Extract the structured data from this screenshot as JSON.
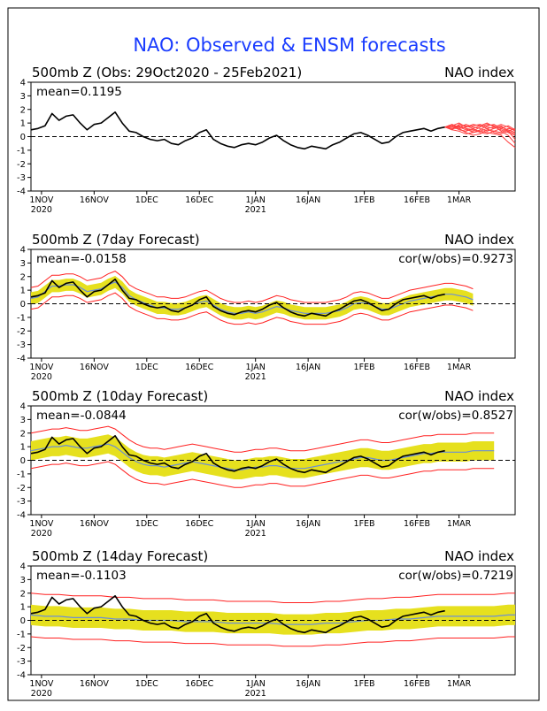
{
  "page_title": "NAO: Observed & ENSM forecasts",
  "colors": {
    "title": "#1a3cff",
    "observed": "#000000",
    "ensemble_members": "#ff4040",
    "spread_band": "#e6e01e",
    "ens_mean": "#6b8fd6",
    "spread_envelope": "#ff2020",
    "zero_line": "#000000",
    "frame": "#000000"
  },
  "chart_data": [
    {
      "type": "line",
      "title": "500mb Z (Obs: 29Oct2020 - 25Feb2021)",
      "right_label": "NAO index",
      "stat_label": "mean=0.1195",
      "corr_label": "",
      "x_ticks": [
        "1NOV",
        "16NOV",
        "1DEC",
        "16DEC",
        "1JAN",
        "16JAN",
        "1FEB",
        "16FEB",
        "1MAR"
      ],
      "x_tick_days": [
        3,
        18,
        33,
        48,
        64,
        79,
        95,
        110,
        122
      ],
      "year_labels": [
        {
          "text": "2020",
          "day": 3
        },
        {
          "text": "2021",
          "day": 64
        }
      ],
      "ylim": [
        -4,
        4
      ],
      "y_ticks": [
        4,
        3,
        2,
        1,
        0,
        -1,
        -2,
        -3,
        -4
      ],
      "xlim": [
        0,
        138
      ],
      "observed_x": [
        0,
        2,
        4,
        6,
        8,
        10,
        12,
        14,
        16,
        18,
        20,
        22,
        24,
        26,
        28,
        30,
        32,
        34,
        36,
        38,
        40,
        42,
        44,
        46,
        48,
        50,
        52,
        54,
        56,
        58,
        60,
        62,
        64,
        66,
        68,
        70,
        72,
        74,
        76,
        78,
        80,
        82,
        84,
        86,
        88,
        90,
        92,
        94,
        96,
        98,
        100,
        102,
        104,
        106,
        108,
        110,
        112,
        114,
        116,
        118
      ],
      "observed_y": [
        0.5,
        0.6,
        0.8,
        1.7,
        1.2,
        1.5,
        1.6,
        1.0,
        0.5,
        0.9,
        1.0,
        1.4,
        1.8,
        1.0,
        0.4,
        0.3,
        0.0,
        -0.2,
        -0.3,
        -0.2,
        -0.5,
        -0.6,
        -0.3,
        -0.1,
        0.3,
        0.5,
        -0.2,
        -0.5,
        -0.7,
        -0.8,
        -0.6,
        -0.5,
        -0.6,
        -0.4,
        -0.1,
        0.1,
        -0.3,
        -0.6,
        -0.8,
        -0.9,
        -0.7,
        -0.8,
        -0.9,
        -0.6,
        -0.4,
        -0.1,
        0.2,
        0.3,
        0.1,
        -0.2,
        -0.5,
        -0.4,
        0.0,
        0.3,
        0.4,
        0.5,
        0.6,
        0.4,
        0.6,
        0.7
      ],
      "members_x": [
        118,
        120,
        122,
        124,
        126,
        128,
        130,
        132,
        134,
        136,
        138
      ],
      "members_y": [
        [
          0.7,
          0.6,
          0.8,
          0.6,
          0.5,
          0.4,
          0.3,
          0.2,
          0.1,
          -0.4,
          -0.8
        ],
        [
          0.7,
          0.8,
          1.0,
          0.7,
          0.8,
          0.9,
          0.7,
          0.6,
          0.7,
          0.5,
          0.3
        ],
        [
          0.7,
          0.5,
          0.4,
          0.2,
          0.3,
          0.5,
          0.8,
          0.9,
          0.6,
          0.4,
          0.2
        ],
        [
          0.7,
          0.9,
          0.6,
          0.3,
          0.1,
          0.2,
          0.5,
          0.4,
          0.3,
          0.6,
          0.5
        ],
        [
          0.7,
          0.6,
          0.7,
          0.9,
          0.7,
          0.6,
          0.4,
          0.6,
          0.8,
          0.4,
          -0.2
        ],
        [
          0.7,
          0.8,
          0.5,
          0.4,
          0.6,
          0.8,
          1.0,
          0.7,
          0.5,
          0.3,
          0.1
        ],
        [
          0.7,
          0.5,
          0.9,
          0.8,
          0.6,
          0.3,
          0.2,
          0.4,
          0.6,
          0.8,
          0.5
        ],
        [
          0.7,
          0.9,
          0.7,
          0.5,
          0.4,
          0.7,
          0.9,
          0.8,
          0.4,
          0.1,
          -0.5
        ],
        [
          0.7,
          0.6,
          0.6,
          0.7,
          0.9,
          0.8,
          0.6,
          0.3,
          0.2,
          0.4,
          0.6
        ],
        [
          0.7,
          0.7,
          0.8,
          0.6,
          0.3,
          0.4,
          0.6,
          0.7,
          0.9,
          0.7,
          0.4
        ]
      ]
    },
    {
      "type": "area",
      "title": "500mb Z (7day Forecast)",
      "right_label": "NAO index",
      "stat_label": "mean=-0.0158",
      "corr_label": "cor(w/obs)=0.9273",
      "x_ticks": [
        "1NOV",
        "16NOV",
        "1DEC",
        "16DEC",
        "1JAN",
        "16JAN",
        "1FEB",
        "16FEB",
        "1MAR"
      ],
      "x_tick_days": [
        3,
        18,
        33,
        48,
        64,
        79,
        95,
        110,
        122
      ],
      "year_labels": [
        {
          "text": "2020",
          "day": 3
        },
        {
          "text": "2021",
          "day": 64
        }
      ],
      "ylim": [
        -4,
        4
      ],
      "y_ticks": [
        4,
        3,
        2,
        1,
        0,
        -1,
        -2,
        -3,
        -4
      ],
      "xlim": [
        0,
        138
      ],
      "spread": {
        "band": 0.45,
        "envelope": 0.8
      },
      "mean_x": [
        0,
        2,
        4,
        6,
        8,
        10,
        12,
        14,
        16,
        18,
        20,
        22,
        24,
        26,
        28,
        30,
        32,
        34,
        36,
        38,
        40,
        42,
        44,
        46,
        48,
        50,
        52,
        54,
        56,
        58,
        60,
        62,
        64,
        66,
        68,
        70,
        72,
        74,
        76,
        78,
        80,
        82,
        84,
        86,
        88,
        90,
        92,
        94,
        96,
        98,
        100,
        102,
        104,
        106,
        108,
        110,
        112,
        114,
        116,
        118,
        120,
        122,
        124,
        126
      ],
      "mean_y": [
        0.4,
        0.5,
        0.9,
        1.3,
        1.3,
        1.4,
        1.4,
        1.2,
        0.9,
        1.0,
        1.1,
        1.4,
        1.6,
        1.2,
        0.6,
        0.3,
        0.1,
        -0.1,
        -0.3,
        -0.3,
        -0.4,
        -0.4,
        -0.3,
        -0.1,
        0.1,
        0.2,
        -0.1,
        -0.4,
        -0.6,
        -0.7,
        -0.7,
        -0.6,
        -0.7,
        -0.6,
        -0.4,
        -0.2,
        -0.3,
        -0.5,
        -0.6,
        -0.7,
        -0.7,
        -0.7,
        -0.7,
        -0.6,
        -0.5,
        -0.3,
        0.0,
        0.1,
        0.0,
        -0.2,
        -0.4,
        -0.4,
        -0.2,
        0.0,
        0.2,
        0.3,
        0.4,
        0.5,
        0.6,
        0.7,
        0.7,
        0.6,
        0.5,
        0.3
      ],
      "observed_x": [
        0,
        2,
        4,
        6,
        8,
        10,
        12,
        14,
        16,
        18,
        20,
        22,
        24,
        26,
        28,
        30,
        32,
        34,
        36,
        38,
        40,
        42,
        44,
        46,
        48,
        50,
        52,
        54,
        56,
        58,
        60,
        62,
        64,
        66,
        68,
        70,
        72,
        74,
        76,
        78,
        80,
        82,
        84,
        86,
        88,
        90,
        92,
        94,
        96,
        98,
        100,
        102,
        104,
        106,
        108,
        110,
        112,
        114,
        116,
        118
      ],
      "observed_y": [
        0.5,
        0.6,
        0.8,
        1.7,
        1.2,
        1.5,
        1.6,
        1.0,
        0.5,
        0.9,
        1.0,
        1.4,
        1.8,
        1.0,
        0.4,
        0.3,
        0.0,
        -0.2,
        -0.3,
        -0.2,
        -0.5,
        -0.6,
        -0.3,
        -0.1,
        0.3,
        0.5,
        -0.2,
        -0.5,
        -0.7,
        -0.8,
        -0.6,
        -0.5,
        -0.6,
        -0.4,
        -0.1,
        0.1,
        -0.3,
        -0.6,
        -0.8,
        -0.9,
        -0.7,
        -0.8,
        -0.9,
        -0.6,
        -0.4,
        -0.1,
        0.2,
        0.3,
        0.1,
        -0.2,
        -0.5,
        -0.4,
        0.0,
        0.3,
        0.4,
        0.5,
        0.6,
        0.4,
        0.6,
        0.7
      ]
    },
    {
      "type": "area",
      "title": "500mb Z (10day Forecast)",
      "right_label": "NAO index",
      "stat_label": "mean=-0.0844",
      "corr_label": "cor(w/obs)=0.8527",
      "x_ticks": [
        "1NOV",
        "16NOV",
        "1DEC",
        "16DEC",
        "1JAN",
        "16JAN",
        "1FEB",
        "16FEB",
        "1MAR"
      ],
      "x_tick_days": [
        3,
        18,
        33,
        48,
        64,
        79,
        95,
        110,
        122
      ],
      "year_labels": [
        {
          "text": "2020",
          "day": 3
        },
        {
          "text": "2021",
          "day": 64
        }
      ],
      "ylim": [
        -4,
        4
      ],
      "y_ticks": [
        4,
        3,
        2,
        1,
        0,
        -1,
        -2,
        -3,
        -4
      ],
      "xlim": [
        0,
        138
      ],
      "spread": {
        "band": 0.7,
        "envelope": 1.3
      },
      "mean_x": [
        0,
        2,
        4,
        6,
        8,
        10,
        12,
        14,
        16,
        18,
        20,
        22,
        24,
        26,
        28,
        30,
        32,
        34,
        36,
        38,
        40,
        42,
        44,
        46,
        48,
        50,
        52,
        54,
        56,
        58,
        60,
        62,
        64,
        66,
        68,
        70,
        72,
        74,
        76,
        78,
        80,
        82,
        84,
        86,
        88,
        90,
        92,
        94,
        96,
        98,
        100,
        102,
        104,
        106,
        108,
        110,
        112,
        114,
        116,
        118,
        120,
        122,
        124,
        126,
        128,
        130,
        132
      ],
      "mean_y": [
        0.7,
        0.8,
        0.9,
        1.0,
        1.0,
        1.1,
        1.0,
        0.9,
        0.9,
        1.0,
        1.1,
        1.2,
        1.0,
        0.6,
        0.2,
        -0.1,
        -0.3,
        -0.4,
        -0.4,
        -0.5,
        -0.4,
        -0.3,
        -0.2,
        -0.1,
        -0.2,
        -0.3,
        -0.4,
        -0.5,
        -0.6,
        -0.7,
        -0.7,
        -0.6,
        -0.5,
        -0.5,
        -0.4,
        -0.4,
        -0.5,
        -0.6,
        -0.6,
        -0.6,
        -0.5,
        -0.4,
        -0.3,
        -0.2,
        -0.1,
        0.0,
        0.1,
        0.2,
        0.2,
        0.1,
        0.0,
        0.0,
        0.1,
        0.2,
        0.3,
        0.4,
        0.5,
        0.5,
        0.6,
        0.6,
        0.6,
        0.6,
        0.6,
        0.7,
        0.7,
        0.7,
        0.7
      ],
      "observed_x": [
        0,
        2,
        4,
        6,
        8,
        10,
        12,
        14,
        16,
        18,
        20,
        22,
        24,
        26,
        28,
        30,
        32,
        34,
        36,
        38,
        40,
        42,
        44,
        46,
        48,
        50,
        52,
        54,
        56,
        58,
        60,
        62,
        64,
        66,
        68,
        70,
        72,
        74,
        76,
        78,
        80,
        82,
        84,
        86,
        88,
        90,
        92,
        94,
        96,
        98,
        100,
        102,
        104,
        106,
        108,
        110,
        112,
        114,
        116,
        118
      ],
      "observed_y": [
        0.5,
        0.6,
        0.8,
        1.7,
        1.2,
        1.5,
        1.6,
        1.0,
        0.5,
        0.9,
        1.0,
        1.4,
        1.8,
        1.0,
        0.4,
        0.3,
        0.0,
        -0.2,
        -0.3,
        -0.2,
        -0.5,
        -0.6,
        -0.3,
        -0.1,
        0.3,
        0.5,
        -0.2,
        -0.5,
        -0.7,
        -0.8,
        -0.6,
        -0.5,
        -0.6,
        -0.4,
        -0.1,
        0.1,
        -0.3,
        -0.6,
        -0.8,
        -0.9,
        -0.7,
        -0.8,
        -0.9,
        -0.6,
        -0.4,
        -0.1,
        0.2,
        0.3,
        0.1,
        -0.2,
        -0.5,
        -0.4,
        0.0,
        0.3,
        0.4,
        0.5,
        0.6,
        0.4,
        0.6,
        0.7
      ]
    },
    {
      "type": "area",
      "title": "500mb Z (14day Forecast)",
      "right_label": "NAO index",
      "stat_label": "mean=-0.1103",
      "corr_label": "cor(w/obs)=0.7219",
      "x_ticks": [
        "1NOV",
        "16NOV",
        "1DEC",
        "16DEC",
        "1JAN",
        "16JAN",
        "1FEB",
        "16FEB",
        "1MAR"
      ],
      "x_tick_days": [
        3,
        18,
        33,
        48,
        64,
        79,
        95,
        110,
        122
      ],
      "year_labels": [
        {
          "text": "2020",
          "day": 3
        },
        {
          "text": "2021",
          "day": 64
        }
      ],
      "ylim": [
        -4,
        4
      ],
      "y_ticks": [
        4,
        3,
        2,
        1,
        0,
        -1,
        -2,
        -3,
        -4
      ],
      "xlim": [
        0,
        138
      ],
      "spread": {
        "band": 0.75,
        "envelope": 1.6
      },
      "mean_x": [
        0,
        4,
        8,
        12,
        16,
        20,
        24,
        28,
        32,
        36,
        40,
        44,
        48,
        52,
        56,
        60,
        64,
        68,
        72,
        76,
        80,
        84,
        88,
        92,
        96,
        100,
        104,
        108,
        112,
        116,
        120,
        124,
        128,
        132,
        136,
        138
      ],
      "mean_y": [
        0.4,
        0.3,
        0.3,
        0.2,
        0.2,
        0.2,
        0.1,
        0.1,
        0.0,
        0.0,
        0.0,
        -0.1,
        -0.1,
        -0.1,
        -0.2,
        -0.2,
        -0.2,
        -0.2,
        -0.3,
        -0.3,
        -0.3,
        -0.2,
        -0.2,
        -0.1,
        0.0,
        0.0,
        0.1,
        0.1,
        0.2,
        0.3,
        0.3,
        0.3,
        0.3,
        0.3,
        0.4,
        0.4
      ],
      "observed_x": [
        0,
        2,
        4,
        6,
        8,
        10,
        12,
        14,
        16,
        18,
        20,
        22,
        24,
        26,
        28,
        30,
        32,
        34,
        36,
        38,
        40,
        42,
        44,
        46,
        48,
        50,
        52,
        54,
        56,
        58,
        60,
        62,
        64,
        66,
        68,
        70,
        72,
        74,
        76,
        78,
        80,
        82,
        84,
        86,
        88,
        90,
        92,
        94,
        96,
        98,
        100,
        102,
        104,
        106,
        108,
        110,
        112,
        114,
        116,
        118
      ],
      "observed_y": [
        0.5,
        0.6,
        0.8,
        1.7,
        1.2,
        1.5,
        1.6,
        1.0,
        0.5,
        0.9,
        1.0,
        1.4,
        1.8,
        1.0,
        0.4,
        0.3,
        0.0,
        -0.2,
        -0.3,
        -0.2,
        -0.5,
        -0.6,
        -0.3,
        -0.1,
        0.3,
        0.5,
        -0.2,
        -0.5,
        -0.7,
        -0.8,
        -0.6,
        -0.5,
        -0.6,
        -0.4,
        -0.1,
        0.1,
        -0.3,
        -0.6,
        -0.8,
        -0.9,
        -0.7,
        -0.8,
        -0.9,
        -0.6,
        -0.4,
        -0.1,
        0.2,
        0.3,
        0.1,
        -0.2,
        -0.5,
        -0.4,
        0.0,
        0.3,
        0.4,
        0.5,
        0.6,
        0.4,
        0.6,
        0.7
      ]
    }
  ]
}
